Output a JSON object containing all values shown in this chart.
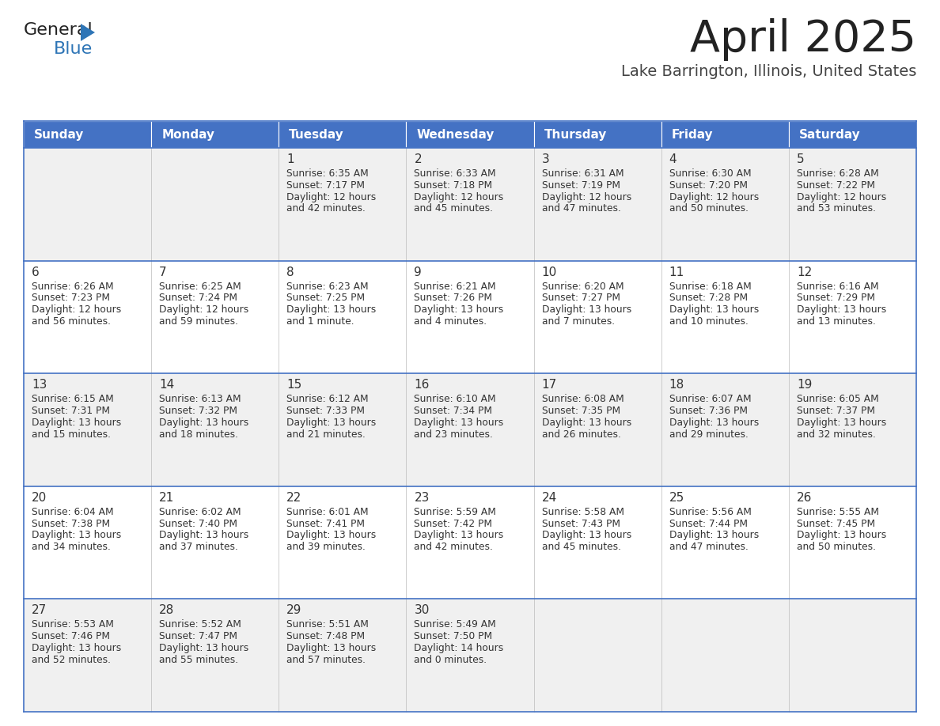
{
  "title": "April 2025",
  "subtitle": "Lake Barrington, Illinois, United States",
  "header_bg": "#4472C4",
  "header_text_color": "#FFFFFF",
  "days_of_week": [
    "Sunday",
    "Monday",
    "Tuesday",
    "Wednesday",
    "Thursday",
    "Friday",
    "Saturday"
  ],
  "row_bg_odd": "#F0F0F0",
  "row_bg_even": "#FFFFFF",
  "cell_border_color": "#4472C4",
  "title_color": "#222222",
  "subtitle_color": "#444444",
  "logo_general_color": "#222222",
  "logo_blue_color": "#2E75B6",
  "logo_tri_color": "#2E75B6",
  "calendar_data": [
    [
      {
        "day": "",
        "sunrise": "",
        "sunset": "",
        "daylight": ""
      },
      {
        "day": "",
        "sunrise": "",
        "sunset": "",
        "daylight": ""
      },
      {
        "day": "1",
        "sunrise": "6:35 AM",
        "sunset": "7:17 PM",
        "daylight": "12 hours and 42 minutes."
      },
      {
        "day": "2",
        "sunrise": "6:33 AM",
        "sunset": "7:18 PM",
        "daylight": "12 hours and 45 minutes."
      },
      {
        "day": "3",
        "sunrise": "6:31 AM",
        "sunset": "7:19 PM",
        "daylight": "12 hours and 47 minutes."
      },
      {
        "day": "4",
        "sunrise": "6:30 AM",
        "sunset": "7:20 PM",
        "daylight": "12 hours and 50 minutes."
      },
      {
        "day": "5",
        "sunrise": "6:28 AM",
        "sunset": "7:22 PM",
        "daylight": "12 hours and 53 minutes."
      }
    ],
    [
      {
        "day": "6",
        "sunrise": "6:26 AM",
        "sunset": "7:23 PM",
        "daylight": "12 hours and 56 minutes."
      },
      {
        "day": "7",
        "sunrise": "6:25 AM",
        "sunset": "7:24 PM",
        "daylight": "12 hours and 59 minutes."
      },
      {
        "day": "8",
        "sunrise": "6:23 AM",
        "sunset": "7:25 PM",
        "daylight": "13 hours and 1 minute."
      },
      {
        "day": "9",
        "sunrise": "6:21 AM",
        "sunset": "7:26 PM",
        "daylight": "13 hours and 4 minutes."
      },
      {
        "day": "10",
        "sunrise": "6:20 AM",
        "sunset": "7:27 PM",
        "daylight": "13 hours and 7 minutes."
      },
      {
        "day": "11",
        "sunrise": "6:18 AM",
        "sunset": "7:28 PM",
        "daylight": "13 hours and 10 minutes."
      },
      {
        "day": "12",
        "sunrise": "6:16 AM",
        "sunset": "7:29 PM",
        "daylight": "13 hours and 13 minutes."
      }
    ],
    [
      {
        "day": "13",
        "sunrise": "6:15 AM",
        "sunset": "7:31 PM",
        "daylight": "13 hours and 15 minutes."
      },
      {
        "day": "14",
        "sunrise": "6:13 AM",
        "sunset": "7:32 PM",
        "daylight": "13 hours and 18 minutes."
      },
      {
        "day": "15",
        "sunrise": "6:12 AM",
        "sunset": "7:33 PM",
        "daylight": "13 hours and 21 minutes."
      },
      {
        "day": "16",
        "sunrise": "6:10 AM",
        "sunset": "7:34 PM",
        "daylight": "13 hours and 23 minutes."
      },
      {
        "day": "17",
        "sunrise": "6:08 AM",
        "sunset": "7:35 PM",
        "daylight": "13 hours and 26 minutes."
      },
      {
        "day": "18",
        "sunrise": "6:07 AM",
        "sunset": "7:36 PM",
        "daylight": "13 hours and 29 minutes."
      },
      {
        "day": "19",
        "sunrise": "6:05 AM",
        "sunset": "7:37 PM",
        "daylight": "13 hours and 32 minutes."
      }
    ],
    [
      {
        "day": "20",
        "sunrise": "6:04 AM",
        "sunset": "7:38 PM",
        "daylight": "13 hours and 34 minutes."
      },
      {
        "day": "21",
        "sunrise": "6:02 AM",
        "sunset": "7:40 PM",
        "daylight": "13 hours and 37 minutes."
      },
      {
        "day": "22",
        "sunrise": "6:01 AM",
        "sunset": "7:41 PM",
        "daylight": "13 hours and 39 minutes."
      },
      {
        "day": "23",
        "sunrise": "5:59 AM",
        "sunset": "7:42 PM",
        "daylight": "13 hours and 42 minutes."
      },
      {
        "day": "24",
        "sunrise": "5:58 AM",
        "sunset": "7:43 PM",
        "daylight": "13 hours and 45 minutes."
      },
      {
        "day": "25",
        "sunrise": "5:56 AM",
        "sunset": "7:44 PM",
        "daylight": "13 hours and 47 minutes."
      },
      {
        "day": "26",
        "sunrise": "5:55 AM",
        "sunset": "7:45 PM",
        "daylight": "13 hours and 50 minutes."
      }
    ],
    [
      {
        "day": "27",
        "sunrise": "5:53 AM",
        "sunset": "7:46 PM",
        "daylight": "13 hours and 52 minutes."
      },
      {
        "day": "28",
        "sunrise": "5:52 AM",
        "sunset": "7:47 PM",
        "daylight": "13 hours and 55 minutes."
      },
      {
        "day": "29",
        "sunrise": "5:51 AM",
        "sunset": "7:48 PM",
        "daylight": "13 hours and 57 minutes."
      },
      {
        "day": "30",
        "sunrise": "5:49 AM",
        "sunset": "7:50 PM",
        "daylight": "14 hours and 0 minutes."
      },
      {
        "day": "",
        "sunrise": "",
        "sunset": "",
        "daylight": ""
      },
      {
        "day": "",
        "sunrise": "",
        "sunset": "",
        "daylight": ""
      },
      {
        "day": "",
        "sunrise": "",
        "sunset": "",
        "daylight": ""
      }
    ]
  ]
}
